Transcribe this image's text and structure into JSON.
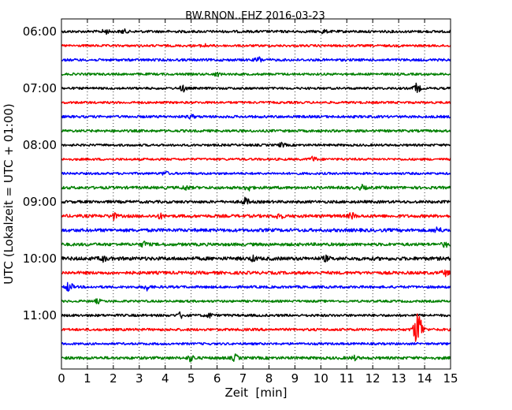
{
  "chart_data": {
    "type": "line",
    "title": "BW.RNON..EHZ 2016-03-23",
    "xlabel": "Zeit  [min]",
    "ylabel": "UTC (Lokalzeit = UTC + 01:00)",
    "xlim": [
      0,
      15
    ],
    "x_ticks": [
      "0",
      "1",
      "2",
      "3",
      "4",
      "5",
      "6",
      "7",
      "8",
      "9",
      "10",
      "11",
      "12",
      "13",
      "14",
      "15"
    ],
    "y_ticks": [
      "06:00",
      "07:00",
      "08:00",
      "09:00",
      "10:00",
      "11:00"
    ],
    "y_tick_rows": [
      0,
      4,
      8,
      12,
      16,
      20
    ],
    "grid": "vertical-dotted",
    "row_interval_min": 15,
    "trace_colors": [
      "#000000",
      "#ff0000",
      "#0000ff",
      "#008000"
    ],
    "traces": [
      {
        "start": "06:00",
        "color": "#000000",
        "amplitude": 1.0,
        "events": [
          {
            "t": 1.7,
            "a": 1.6
          },
          {
            "t": 2.4,
            "a": 1.3
          },
          {
            "t": 10.1,
            "a": 1.2
          }
        ]
      },
      {
        "start": "06:15",
        "color": "#ff0000",
        "amplitude": 0.9,
        "events": [
          {
            "t": 5.5,
            "a": 1.2
          }
        ]
      },
      {
        "start": "06:30",
        "color": "#0000ff",
        "amplitude": 1.0,
        "events": [
          {
            "t": 7.6,
            "a": 2.0
          }
        ]
      },
      {
        "start": "06:45",
        "color": "#008000",
        "amplitude": 0.9,
        "events": [
          {
            "t": 6.0,
            "a": 1.3
          }
        ]
      },
      {
        "start": "07:00",
        "color": "#000000",
        "amplitude": 0.9,
        "events": [
          {
            "t": 4.7,
            "a": 2.4
          },
          {
            "t": 13.7,
            "a": 3.6
          }
        ]
      },
      {
        "start": "07:15",
        "color": "#ff0000",
        "amplitude": 0.9,
        "events": []
      },
      {
        "start": "07:30",
        "color": "#0000ff",
        "amplitude": 1.0,
        "events": [
          {
            "t": 5.0,
            "a": 1.3
          }
        ]
      },
      {
        "start": "07:45",
        "color": "#008000",
        "amplitude": 1.0,
        "events": []
      },
      {
        "start": "08:00",
        "color": "#000000",
        "amplitude": 0.9,
        "events": [
          {
            "t": 8.5,
            "a": 1.5
          }
        ]
      },
      {
        "start": "08:15",
        "color": "#ff0000",
        "amplitude": 0.9,
        "events": [
          {
            "t": 9.7,
            "a": 2.0
          }
        ]
      },
      {
        "start": "08:30",
        "color": "#0000ff",
        "amplitude": 0.9,
        "events": [
          {
            "t": 4.0,
            "a": 1.4
          }
        ]
      },
      {
        "start": "08:45",
        "color": "#008000",
        "amplitude": 1.1,
        "events": [
          {
            "t": 4.8,
            "a": 1.5
          },
          {
            "t": 7.2,
            "a": 2.0
          },
          {
            "t": 11.6,
            "a": 1.6
          }
        ]
      },
      {
        "start": "09:00",
        "color": "#000000",
        "amplitude": 1.1,
        "events": [
          {
            "t": 7.1,
            "a": 2.8
          }
        ]
      },
      {
        "start": "09:15",
        "color": "#ff0000",
        "amplitude": 1.2,
        "events": [
          {
            "t": 2.0,
            "a": 2.4
          },
          {
            "t": 3.8,
            "a": 1.6
          },
          {
            "t": 8.4,
            "a": 2.2
          },
          {
            "t": 11.2,
            "a": 2.2
          }
        ]
      },
      {
        "start": "09:30",
        "color": "#0000ff",
        "amplitude": 1.3,
        "events": [
          {
            "t": 14.5,
            "a": 2.2
          }
        ]
      },
      {
        "start": "09:45",
        "color": "#008000",
        "amplitude": 1.2,
        "events": [
          {
            "t": 3.2,
            "a": 2.0
          },
          {
            "t": 14.8,
            "a": 1.6
          }
        ]
      },
      {
        "start": "10:00",
        "color": "#000000",
        "amplitude": 1.4,
        "events": [
          {
            "t": 1.6,
            "a": 1.8
          },
          {
            "t": 7.4,
            "a": 1.6
          },
          {
            "t": 10.2,
            "a": 1.6
          }
        ]
      },
      {
        "start": "10:15",
        "color": "#ff0000",
        "amplitude": 1.2,
        "events": [
          {
            "t": 14.8,
            "a": 2.0
          }
        ]
      },
      {
        "start": "10:30",
        "color": "#0000ff",
        "amplitude": 1.0,
        "events": [
          {
            "t": 0.3,
            "a": 4.0
          },
          {
            "t": 3.3,
            "a": 2.2
          }
        ]
      },
      {
        "start": "10:45",
        "color": "#008000",
        "amplitude": 0.9,
        "events": [
          {
            "t": 1.4,
            "a": 1.3
          }
        ]
      },
      {
        "start": "11:00",
        "color": "#000000",
        "amplitude": 1.0,
        "events": [
          {
            "t": 4.6,
            "a": 2.0
          },
          {
            "t": 5.7,
            "a": 1.5
          }
        ]
      },
      {
        "start": "11:15",
        "color": "#ff0000",
        "amplitude": 1.0,
        "events": [
          {
            "t": 13.75,
            "a": 14.0
          }
        ]
      },
      {
        "start": "11:30",
        "color": "#0000ff",
        "amplitude": 0.9,
        "events": []
      },
      {
        "start": "11:45",
        "color": "#008000",
        "amplitude": 1.1,
        "events": [
          {
            "t": 5.0,
            "a": 2.4
          },
          {
            "t": 6.7,
            "a": 2.2
          },
          {
            "t": 11.3,
            "a": 1.3
          }
        ]
      }
    ]
  }
}
